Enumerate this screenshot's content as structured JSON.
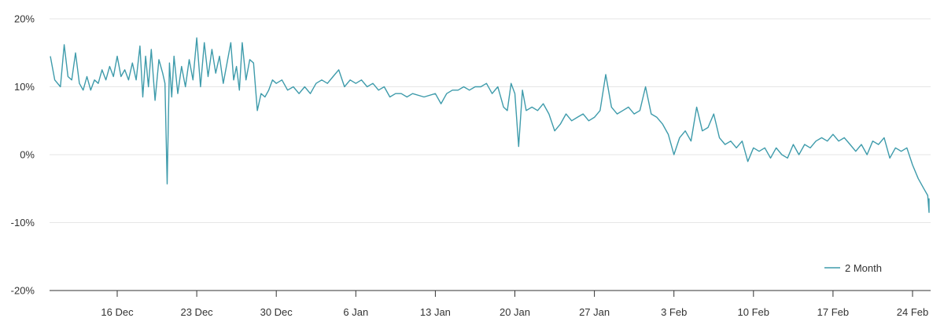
{
  "chart_data": {
    "type": "line",
    "title": "",
    "xlabel": "",
    "ylabel": "",
    "ylim": [
      -20,
      20
    ],
    "y_ticks": [
      20,
      10,
      0,
      -10,
      -20
    ],
    "y_tick_labels": [
      "20%",
      "10%",
      "0%",
      "-10%",
      "-20%"
    ],
    "x_tick_labels": [
      "16 Dec",
      "23 Dec",
      "30 Dec",
      "6 Jan",
      "13 Jan",
      "20 Jan",
      "27 Jan",
      "3 Feb",
      "10 Feb",
      "17 Feb",
      "24 Feb"
    ],
    "grid": true,
    "legend_position": "bottom-right",
    "colors": {
      "series": "#3e9bab",
      "grid": "#e6e6e6",
      "axis": "#333333"
    },
    "series": [
      {
        "name": "2 Month",
        "points": [
          [
            "10 Dec",
            14.5
          ],
          [
            "10 Dec",
            11.0
          ],
          [
            "11 Dec",
            10.0
          ],
          [
            "11 Dec",
            16.2
          ],
          [
            "11 Dec",
            11.5
          ],
          [
            "12 Dec",
            11.0
          ],
          [
            "12 Dec",
            15.0
          ],
          [
            "12 Dec",
            10.5
          ],
          [
            "13 Dec",
            9.5
          ],
          [
            "13 Dec",
            11.5
          ],
          [
            "13 Dec",
            9.5
          ],
          [
            "14 Dec",
            11.0
          ],
          [
            "14 Dec",
            10.5
          ],
          [
            "14 Dec",
            12.5
          ],
          [
            "15 Dec",
            11.0
          ],
          [
            "15 Dec",
            13.0
          ],
          [
            "15 Dec",
            11.5
          ],
          [
            "16 Dec",
            14.5
          ],
          [
            "16 Dec",
            11.5
          ],
          [
            "16 Dec",
            12.5
          ],
          [
            "17 Dec",
            11.0
          ],
          [
            "17 Dec",
            13.5
          ],
          [
            "17 Dec",
            11.0
          ],
          [
            "18 Dec",
            16.0
          ],
          [
            "18 Dec",
            8.5
          ],
          [
            "18 Dec",
            14.5
          ],
          [
            "18 Dec",
            10.0
          ],
          [
            "19 Dec",
            15.5
          ],
          [
            "19 Dec",
            8.0
          ],
          [
            "19 Dec",
            14.0
          ],
          [
            "20 Dec",
            12.0
          ],
          [
            "20 Dec",
            10.5
          ],
          [
            "20 Dec",
            -4.3
          ],
          [
            "20 Dec",
            13.5
          ],
          [
            "20 Dec",
            8.5
          ],
          [
            "21 Dec",
            14.5
          ],
          [
            "21 Dec",
            9.0
          ],
          [
            "21 Dec",
            13.0
          ],
          [
            "22 Dec",
            10.0
          ],
          [
            "22 Dec",
            14.0
          ],
          [
            "22 Dec",
            11.0
          ],
          [
            "23 Dec",
            17.2
          ],
          [
            "23 Dec",
            10.0
          ],
          [
            "23 Dec",
            16.5
          ],
          [
            "24 Dec",
            11.5
          ],
          [
            "24 Dec",
            15.5
          ],
          [
            "24 Dec",
            12.0
          ],
          [
            "25 Dec",
            14.5
          ],
          [
            "25 Dec",
            10.5
          ],
          [
            "25 Dec",
            13.5
          ],
          [
            "26 Dec",
            16.5
          ],
          [
            "26 Dec",
            11.0
          ],
          [
            "26 Dec",
            13.0
          ],
          [
            "26 Dec",
            9.5
          ],
          [
            "27 Dec",
            16.5
          ],
          [
            "27 Dec",
            11.0
          ],
          [
            "27 Dec",
            14.0
          ],
          [
            "28 Dec",
            13.5
          ],
          [
            "28 Dec",
            6.5
          ],
          [
            "28 Dec",
            9.0
          ],
          [
            "29 Dec",
            8.5
          ],
          [
            "29 Dec",
            9.5
          ],
          [
            "29 Dec",
            11.0
          ],
          [
            "30 Dec",
            10.5
          ],
          [
            "30 Dec",
            11.0
          ],
          [
            "31 Dec",
            9.5
          ],
          [
            "31 Dec",
            10.0
          ],
          [
            "1 Jan",
            9.0
          ],
          [
            "1 Jan",
            10.0
          ],
          [
            "2 Jan",
            9.0
          ],
          [
            "2 Jan",
            10.5
          ],
          [
            "3 Jan",
            11.0
          ],
          [
            "3 Jan",
            10.5
          ],
          [
            "4 Jan",
            11.5
          ],
          [
            "4 Jan",
            12.5
          ],
          [
            "5 Jan",
            10.0
          ],
          [
            "5 Jan",
            11.0
          ],
          [
            "6 Jan",
            10.5
          ],
          [
            "6 Jan",
            11.0
          ],
          [
            "7 Jan",
            10.0
          ],
          [
            "7 Jan",
            10.5
          ],
          [
            "8 Jan",
            9.5
          ],
          [
            "8 Jan",
            10.0
          ],
          [
            "9 Jan",
            8.5
          ],
          [
            "9 Jan",
            9.0
          ],
          [
            "10 Jan",
            9.0
          ],
          [
            "10 Jan",
            8.5
          ],
          [
            "11 Jan",
            9.0
          ],
          [
            "12 Jan",
            8.5
          ],
          [
            "13 Jan",
            9.0
          ],
          [
            "13 Jan",
            7.5
          ],
          [
            "14 Jan",
            9.0
          ],
          [
            "14 Jan",
            9.5
          ],
          [
            "15 Jan",
            9.5
          ],
          [
            "15 Jan",
            10.0
          ],
          [
            "16 Jan",
            9.5
          ],
          [
            "16 Jan",
            10.0
          ],
          [
            "17 Jan",
            10.0
          ],
          [
            "17 Jan",
            10.5
          ],
          [
            "18 Jan",
            9.0
          ],
          [
            "18 Jan",
            10.0
          ],
          [
            "19 Jan",
            7.0
          ],
          [
            "19 Jan",
            6.5
          ],
          [
            "19 Jan",
            10.5
          ],
          [
            "20 Jan",
            9.0
          ],
          [
            "20 Jan",
            1.2
          ],
          [
            "20 Jan",
            9.5
          ],
          [
            "21 Jan",
            6.5
          ],
          [
            "21 Jan",
            7.0
          ],
          [
            "22 Jan",
            6.5
          ],
          [
            "22 Jan",
            7.5
          ],
          [
            "23 Jan",
            6.0
          ],
          [
            "23 Jan",
            3.5
          ],
          [
            "24 Jan",
            4.5
          ],
          [
            "24 Jan",
            6.0
          ],
          [
            "25 Jan",
            5.0
          ],
          [
            "25 Jan",
            5.5
          ],
          [
            "26 Jan",
            6.0
          ],
          [
            "26 Jan",
            5.0
          ],
          [
            "27 Jan",
            5.5
          ],
          [
            "27 Jan",
            6.5
          ],
          [
            "28 Jan",
            11.8
          ],
          [
            "28 Jan",
            7.0
          ],
          [
            "29 Jan",
            6.0
          ],
          [
            "29 Jan",
            6.5
          ],
          [
            "30 Jan",
            7.0
          ],
          [
            "30 Jan",
            6.0
          ],
          [
            "31 Jan",
            6.5
          ],
          [
            "31 Jan",
            10.0
          ],
          [
            "1 Feb",
            6.0
          ],
          [
            "1 Feb",
            5.5
          ],
          [
            "2 Feb",
            4.5
          ],
          [
            "2 Feb",
            3.0
          ],
          [
            "3 Feb",
            0.0
          ],
          [
            "3 Feb",
            2.5
          ],
          [
            "4 Feb",
            3.5
          ],
          [
            "4 Feb",
            2.0
          ],
          [
            "5 Feb",
            7.0
          ],
          [
            "5 Feb",
            3.5
          ],
          [
            "6 Feb",
            4.0
          ],
          [
            "6 Feb",
            6.0
          ],
          [
            "7 Feb",
            2.5
          ],
          [
            "7 Feb",
            1.5
          ],
          [
            "8 Feb",
            2.0
          ],
          [
            "8 Feb",
            1.0
          ],
          [
            "9 Feb",
            2.0
          ],
          [
            "9 Feb",
            -1.0
          ],
          [
            "10 Feb",
            1.0
          ],
          [
            "10 Feb",
            0.5
          ],
          [
            "11 Feb",
            1.0
          ],
          [
            "11 Feb",
            -0.5
          ],
          [
            "12 Feb",
            1.0
          ],
          [
            "12 Feb",
            0.0
          ],
          [
            "13 Feb",
            -0.5
          ],
          [
            "13 Feb",
            1.5
          ],
          [
            "14 Feb",
            0.0
          ],
          [
            "14 Feb",
            1.5
          ],
          [
            "15 Feb",
            1.0
          ],
          [
            "15 Feb",
            2.0
          ],
          [
            "16 Feb",
            2.5
          ],
          [
            "16 Feb",
            2.0
          ],
          [
            "17 Feb",
            3.0
          ],
          [
            "17 Feb",
            2.0
          ],
          [
            "18 Feb",
            2.5
          ],
          [
            "18 Feb",
            1.5
          ],
          [
            "19 Feb",
            0.5
          ],
          [
            "19 Feb",
            1.5
          ],
          [
            "20 Feb",
            0.0
          ],
          [
            "20 Feb",
            2.0
          ],
          [
            "21 Feb",
            1.5
          ],
          [
            "21 Feb",
            2.5
          ],
          [
            "22 Feb",
            -0.5
          ],
          [
            "22 Feb",
            1.0
          ],
          [
            "23 Feb",
            0.5
          ],
          [
            "23 Feb",
            1.0
          ],
          [
            "24 Feb",
            -1.5
          ],
          [
            "24 Feb",
            -3.5
          ],
          [
            "25 Feb",
            -5.0
          ],
          [
            "25 Feb",
            -6.0
          ],
          [
            "25 Feb",
            -8.5
          ],
          [
            "26 Feb",
            -6.5
          ],
          [
            "26 Feb",
            -7.5
          ]
        ]
      }
    ]
  }
}
